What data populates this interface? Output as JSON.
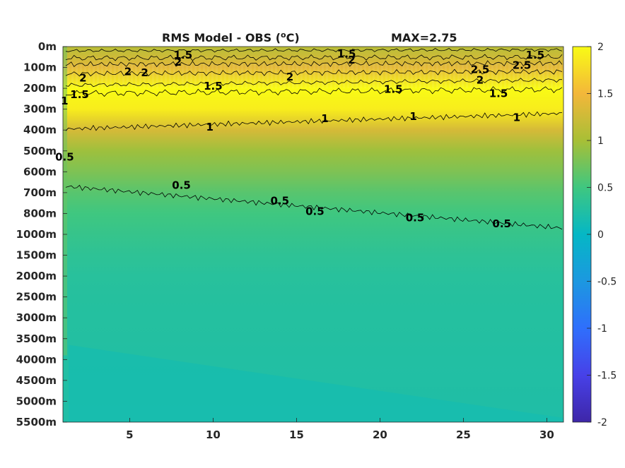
{
  "chart_data": {
    "type": "heatmap",
    "title": "RMS Model - OBS (",
    "title_unit": "°C)",
    "title_unit_sup": "o",
    "title_unit_close": "C)",
    "max_label": "MAX=2.75",
    "xlabel": "",
    "ylabel": "",
    "x_ticks": [
      "5",
      "10",
      "15",
      "20",
      "25",
      "30"
    ],
    "x_tick_values": [
      5,
      10,
      15,
      20,
      25,
      30
    ],
    "xlim": [
      1,
      31
    ],
    "y_ticks": [
      "0m",
      "100m",
      "200m",
      "300m",
      "400m",
      "500m",
      "600m",
      "700m",
      "800m",
      "1000m",
      "1500m",
      "2000m",
      "2500m",
      "3000m",
      "3500m",
      "4000m",
      "4500m",
      "5000m",
      "5500m"
    ],
    "colorbar": {
      "ticks": [
        "2",
        "1.5",
        "1",
        "0.5",
        "0",
        "-0.5",
        "-1",
        "-1.5",
        "-2"
      ],
      "values": [
        2,
        1.5,
        1,
        0.5,
        0,
        -0.5,
        -1,
        -1.5,
        -2
      ],
      "range": [
        -2,
        2
      ],
      "colormap": "parula"
    },
    "depth_profile": [
      {
        "level": 0,
        "rms": 1.1
      },
      {
        "level": 1,
        "rms": 1.4
      },
      {
        "level": 2,
        "rms": 2.0
      },
      {
        "level": 3,
        "rms": 1.9
      },
      {
        "level": 4,
        "rms": 1.3
      },
      {
        "level": 5,
        "rms": 0.95
      },
      {
        "level": 6,
        "rms": 0.8
      },
      {
        "level": 7,
        "rms": 0.62
      },
      {
        "level": 8,
        "rms": 0.5
      },
      {
        "level": 9,
        "rms": 0.42
      },
      {
        "level": 10,
        "rms": 0.35
      },
      {
        "level": 11,
        "rms": 0.3
      },
      {
        "level": 12,
        "rms": 0.28
      },
      {
        "level": 13,
        "rms": 0.27
      },
      {
        "level": 14,
        "rms": 0.26
      },
      {
        "level": 15,
        "rms": 0.25
      },
      {
        "level": 16,
        "rms": 0.24
      },
      {
        "level": 17,
        "rms": 0.23
      },
      {
        "level": 18,
        "rms": 0.22
      }
    ],
    "contour_labels": [
      {
        "text": "1.5",
        "x": 8.2,
        "level": 0.4
      },
      {
        "text": "1.5",
        "x": 18.0,
        "level": 0.35
      },
      {
        "text": "1.5",
        "x": 29.3,
        "level": 0.4
      },
      {
        "text": "2",
        "x": 18.3,
        "level": 0.65
      },
      {
        "text": "2",
        "x": 7.9,
        "level": 0.75
      },
      {
        "text": "2",
        "x": 2.2,
        "level": 1.5
      },
      {
        "text": "2",
        "x": 4.9,
        "level": 1.2
      },
      {
        "text": "2",
        "x": 5.9,
        "level": 1.25
      },
      {
        "text": "2",
        "x": 14.6,
        "level": 1.45
      },
      {
        "text": "2.5",
        "x": 26.0,
        "level": 1.1
      },
      {
        "text": "2.5",
        "x": 28.5,
        "level": 0.9
      },
      {
        "text": "2",
        "x": 26.0,
        "level": 1.6
      },
      {
        "text": "1.5",
        "x": 10.0,
        "level": 1.9
      },
      {
        "text": "1.5",
        "x": 20.8,
        "level": 2.05
      },
      {
        "text": "1.5",
        "x": 27.1,
        "level": 2.25
      },
      {
        "text": "1.5",
        "x": 2.0,
        "level": 2.3
      },
      {
        "text": "1",
        "x": 1.1,
        "level": 2.6
      },
      {
        "text": "1",
        "x": 9.8,
        "level": 3.85
      },
      {
        "text": "1",
        "x": 16.7,
        "level": 3.45
      },
      {
        "text": "1",
        "x": 22.0,
        "level": 3.35
      },
      {
        "text": "1",
        "x": 28.2,
        "level": 3.4
      },
      {
        "text": "0.5",
        "x": 1.1,
        "level": 5.3
      },
      {
        "text": "0.5",
        "x": 8.1,
        "level": 6.65
      },
      {
        "text": "0.5",
        "x": 14.0,
        "level": 7.4
      },
      {
        "text": "0.5",
        "x": 16.1,
        "level": 7.9
      },
      {
        "text": "0.5",
        "x": 22.1,
        "level": 8.2
      },
      {
        "text": "0.5",
        "x": 27.3,
        "level": 8.5
      }
    ]
  }
}
